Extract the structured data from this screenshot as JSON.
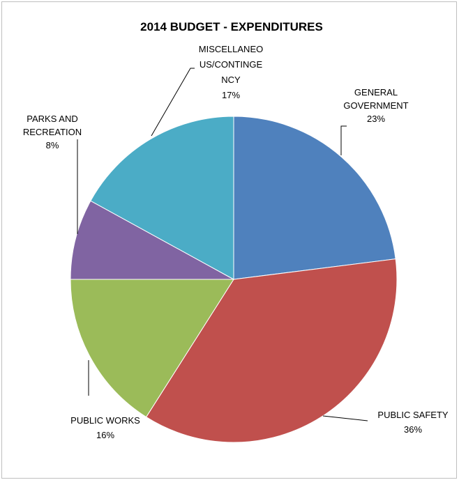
{
  "chart_data": {
    "type": "pie",
    "title": "2014 BUDGET - EXPENDITURES",
    "slices": [
      {
        "label_lines": [
          "GENERAL",
          "GOVERNMENT"
        ],
        "percent_label": "23%",
        "value": 23,
        "color": "#4F81BD"
      },
      {
        "label_lines": [
          "PUBLIC SAFETY"
        ],
        "percent_label": "36%",
        "value": 36,
        "color": "#C0504D"
      },
      {
        "label_lines": [
          "PUBLIC WORKS"
        ],
        "percent_label": "16%",
        "value": 16,
        "color": "#9BBB59"
      },
      {
        "label_lines": [
          "PARKS AND",
          "RECREATION"
        ],
        "percent_label": "8%",
        "value": 8,
        "color": "#8064A2"
      },
      {
        "label_lines": [
          "MISCELLANEO",
          "US/CONTINGE",
          "NCY"
        ],
        "percent_label": "17%",
        "value": 17,
        "color": "#4BACC6"
      }
    ],
    "legend": "none",
    "start_angle": "12 o'clock",
    "direction": "clockwise"
  }
}
